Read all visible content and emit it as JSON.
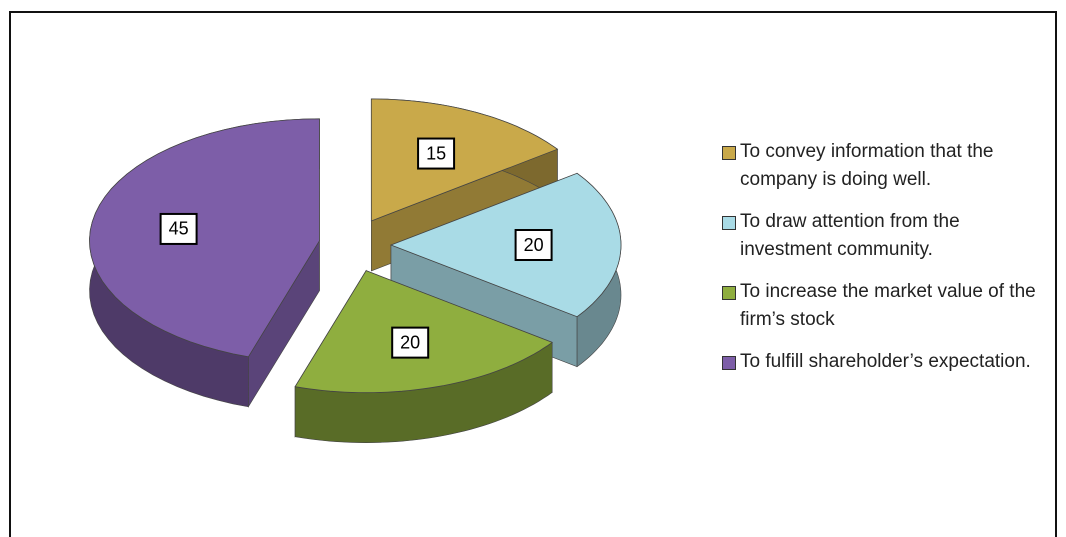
{
  "chart_data": {
    "type": "pie",
    "categories": [
      "To convey information that the company is doing well.",
      "To draw attention from the investment community.",
      "To increase the market value of the firm’s stock",
      "To fulfill shareholder’s expectation."
    ],
    "values": [
      15,
      20,
      20,
      45
    ],
    "colors": [
      "#c9a94a",
      "#a9dbe6",
      "#8fae3f",
      "#7d5ea8"
    ],
    "exploded": true,
    "three_d": true,
    "legend": "right"
  }
}
